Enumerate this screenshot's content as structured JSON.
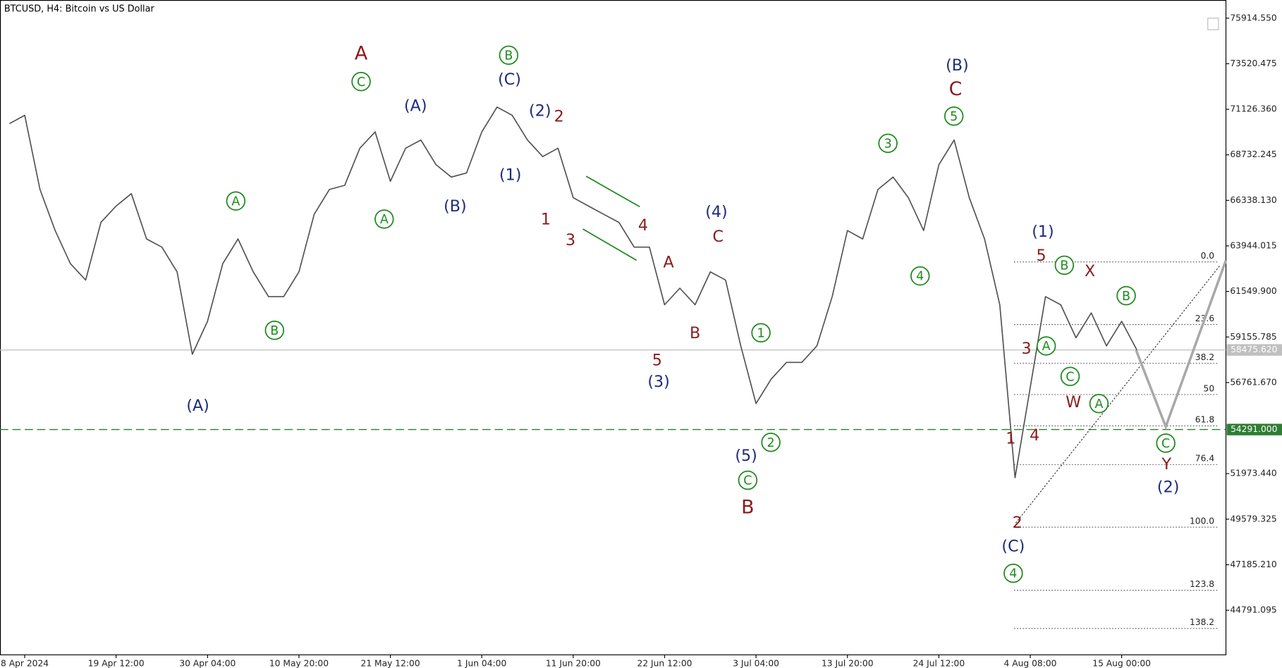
{
  "chart_data": {
    "type": "line",
    "title": "BTCUSD, H4:  Bitcoin vs US Dollar",
    "color": "#505050",
    "categories": [
      null,
      "8 Apr 2024",
      null,
      null,
      null,
      null,
      null,
      "19 Apr 12:00",
      null,
      null,
      null,
      null,
      null,
      "30 Apr 04:00",
      null,
      null,
      null,
      null,
      null,
      "10 May 20:00",
      null,
      null,
      null,
      null,
      null,
      "21 May 12:00",
      null,
      null,
      null,
      null,
      null,
      "1 Jun 04:00",
      null,
      null,
      null,
      null,
      null,
      "11 Jun 20:00",
      null,
      null,
      null,
      null,
      null,
      "22 Jun 12:00",
      null,
      null,
      null,
      null,
      null,
      "3 Jul 04:00",
      null,
      null,
      null,
      null,
      null,
      "13 Jul 20:00",
      null,
      null,
      null,
      null,
      null,
      "24 Jul 12:00",
      null,
      null,
      null,
      null,
      null,
      "4 Aug 08:00",
      null,
      null,
      null,
      null,
      null,
      "15 Aug 00:00",
      null
    ],
    "values": [
      70370,
      70810,
      66910,
      64750,
      63010,
      62150,
      65180,
      66040,
      66690,
      64310,
      63880,
      62580,
      58250,
      59980,
      63010,
      64310,
      62580,
      61280,
      61280,
      62580,
      65610,
      66910,
      67130,
      69080,
      69940,
      67340,
      69080,
      69510,
      68210,
      67560,
      67780,
      69940,
      71240,
      70810,
      69510,
      68640,
      69080,
      66480,
      66040,
      65610,
      65180,
      63880,
      63880,
      60850,
      61720,
      60850,
      62580,
      62150,
      58690,
      55660,
      56950,
      57820,
      57820,
      58690,
      61280,
      64750,
      64310,
      66910,
      67560,
      66480,
      64750,
      68210,
      69510,
      66480,
      64310,
      60850,
      51760,
      56520,
      61280,
      60850,
      59120,
      60420,
      58690,
      59980,
      58470
    ],
    "ylim": [
      42450,
      76870
    ],
    "yticks": [
      {
        "value": 75914.55,
        "label": "75914.550"
      },
      {
        "value": 73520.475,
        "label": "73520.475"
      },
      {
        "value": 71126.36,
        "label": "71126.360"
      },
      {
        "value": 68732.245,
        "label": "68732.245"
      },
      {
        "value": 66338.13,
        "label": "66338.130"
      },
      {
        "value": 63944.015,
        "label": "63944.015"
      },
      {
        "value": 61549.9,
        "label": "61549.900"
      },
      {
        "value": 59155.785,
        "label": "59155.785"
      },
      {
        "value": 56761.67,
        "label": "56761.670"
      },
      {
        "value": 51973.44,
        "label": "51973.440"
      },
      {
        "value": 49579.325,
        "label": "49579.325"
      },
      {
        "value": 47185.21,
        "label": "47185.210"
      },
      {
        "value": 44791.095,
        "label": "44791.095"
      }
    ],
    "price_lines": [
      {
        "value": 58475.62,
        "label": "58475.620",
        "color": "#c0c0c0",
        "style": "solid"
      },
      {
        "value": 54291,
        "label": "54291.000",
        "color": "#2e7d32",
        "style": "dashed"
      }
    ],
    "fibonacci": {
      "levels": [
        {
          "value": 63100,
          "label": "0.0"
        },
        {
          "value": 59810,
          "label": "23.6"
        },
        {
          "value": 57775,
          "label": "38.2"
        },
        {
          "value": 56130,
          "label": "50"
        },
        {
          "value": 54485,
          "label": "61.8"
        },
        {
          "value": 52450,
          "label": "76.4"
        },
        {
          "value": 49160,
          "label": "100.0"
        },
        {
          "value": 45840,
          "label": "123.8"
        },
        {
          "value": 43835,
          "label": "138.2"
        }
      ]
    },
    "annotations": [
      {
        "text": "A",
        "color": "#8b1a1a",
        "circled": false
      },
      {
        "text": "C",
        "color": "#1e8a1e",
        "circled": true
      },
      {
        "text": "B",
        "color": "#1e8a1e",
        "circled": true
      },
      {
        "text": "(C)",
        "color": "#1f2a7a",
        "circled": false
      },
      {
        "text": "(A)",
        "color": "#1f2a7a",
        "circled": false
      },
      {
        "text": "(2)",
        "color": "#1f2a7a",
        "circled": false
      },
      {
        "text": "2",
        "color": "#8b1a1a",
        "circled": false
      },
      {
        "text": "(1)",
        "color": "#1f2a7a",
        "circled": false
      },
      {
        "text": "A",
        "color": "#1e8a1e",
        "circled": true
      },
      {
        "text": "(B)",
        "color": "#1f2a7a",
        "circled": false
      },
      {
        "text": "A",
        "color": "#1e8a1e",
        "circled": true
      },
      {
        "text": "B",
        "color": "#1e8a1e",
        "circled": true
      },
      {
        "text": "(A)",
        "color": "#1f2a7a",
        "circled": false
      },
      {
        "text": "1",
        "color": "#8b1a1a",
        "circled": false
      },
      {
        "text": "3",
        "color": "#8b1a1a",
        "circled": false
      },
      {
        "text": "4",
        "color": "#8b1a1a",
        "circled": false
      },
      {
        "text": "A",
        "color": "#8b1a1a",
        "circled": false
      },
      {
        "text": "(4)",
        "color": "#1f2a7a",
        "circled": false
      },
      {
        "text": "C",
        "color": "#8b1a1a",
        "circled": false
      },
      {
        "text": "B",
        "color": "#8b1a1a",
        "circled": false
      },
      {
        "text": "5",
        "color": "#8b1a1a",
        "circled": false
      },
      {
        "text": "(3)",
        "color": "#1f2a7a",
        "circled": false
      },
      {
        "text": "1",
        "color": "#1e8a1e",
        "circled": true
      },
      {
        "text": "2",
        "color": "#1e8a1e",
        "circled": true
      },
      {
        "text": "(5)",
        "color": "#1f2a7a",
        "circled": false
      },
      {
        "text": "C",
        "color": "#1e8a1e",
        "circled": true
      },
      {
        "text": "B",
        "color": "#8b1a1a",
        "circled": false
      },
      {
        "text": "3",
        "color": "#1e8a1e",
        "circled": true
      },
      {
        "text": "4",
        "color": "#1e8a1e",
        "circled": true
      },
      {
        "text": "(B)",
        "color": "#1f2a7a",
        "circled": false
      },
      {
        "text": "C",
        "color": "#8b1a1a",
        "circled": false
      },
      {
        "text": "5",
        "color": "#1e8a1e",
        "circled": true
      },
      {
        "text": "(1)",
        "color": "#1f2a7a",
        "circled": false
      },
      {
        "text": "5",
        "color": "#8b1a1a",
        "circled": false
      },
      {
        "text": "B",
        "color": "#1e8a1e",
        "circled": true
      },
      {
        "text": "X",
        "color": "#8b1a1a",
        "circled": false
      },
      {
        "text": "B",
        "color": "#1e8a1e",
        "circled": true
      },
      {
        "text": "3",
        "color": "#8b1a1a",
        "circled": false
      },
      {
        "text": "A",
        "color": "#1e8a1e",
        "circled": true
      },
      {
        "text": "C",
        "color": "#1e8a1e",
        "circled": true
      },
      {
        "text": "W",
        "color": "#8b1a1a",
        "circled": false
      },
      {
        "text": "A",
        "color": "#1e8a1e",
        "circled": true
      },
      {
        "text": "4",
        "color": "#8b1a1a",
        "circled": false
      },
      {
        "text": "1",
        "color": "#8b1a1a",
        "circled": false
      },
      {
        "text": "2",
        "color": "#8b1a1a",
        "circled": false
      },
      {
        "text": "(C)",
        "color": "#1f2a7a",
        "circled": false
      },
      {
        "text": "4",
        "color": "#1e8a1e",
        "circled": true
      },
      {
        "text": "C",
        "color": "#1e8a1e",
        "circled": true
      },
      {
        "text": "Y",
        "color": "#8b1a1a",
        "circled": false
      },
      {
        "text": "(2)",
        "color": "#1f2a7a",
        "circled": false
      }
    ]
  }
}
